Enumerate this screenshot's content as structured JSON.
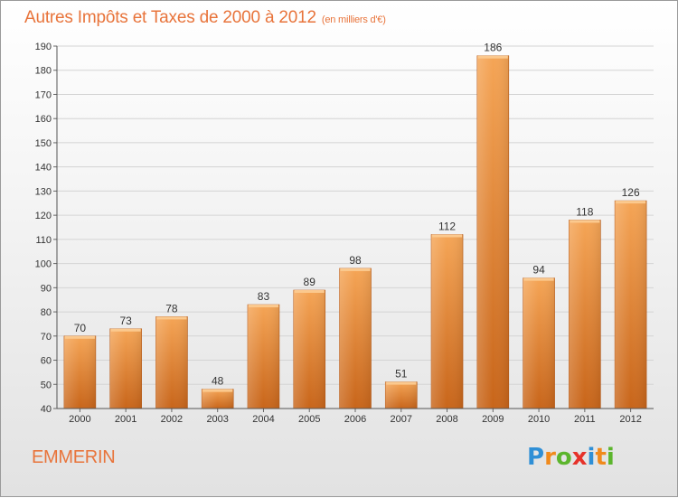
{
  "header": {
    "title": "Autres Impôts et Taxes de 2000 à 2012",
    "subtitle": "(en milliers d'€)"
  },
  "footer": {
    "commune": "EMMERIN",
    "logo": "Proxiti"
  },
  "colors": {
    "bar_top": "#f5a556",
    "bar_bottom": "#c8651a",
    "title": "#e8743b"
  },
  "chart_data": {
    "type": "bar",
    "categories": [
      "2000",
      "2001",
      "2002",
      "2003",
      "2004",
      "2005",
      "2006",
      "2007",
      "2008",
      "2009",
      "2010",
      "2011",
      "2012"
    ],
    "values": [
      70,
      73,
      78,
      48,
      83,
      89,
      98,
      51,
      112,
      186,
      94,
      118,
      126
    ],
    "title": "Autres Impôts et Taxes de 2000 à 2012",
    "subtitle": "(en milliers d'€)",
    "xlabel": "",
    "ylabel": "",
    "ylim": [
      40,
      190
    ],
    "yticks": [
      40,
      50,
      60,
      70,
      80,
      90,
      100,
      110,
      120,
      130,
      140,
      150,
      160,
      170,
      180,
      190
    ],
    "grid": true,
    "legend": "none"
  }
}
